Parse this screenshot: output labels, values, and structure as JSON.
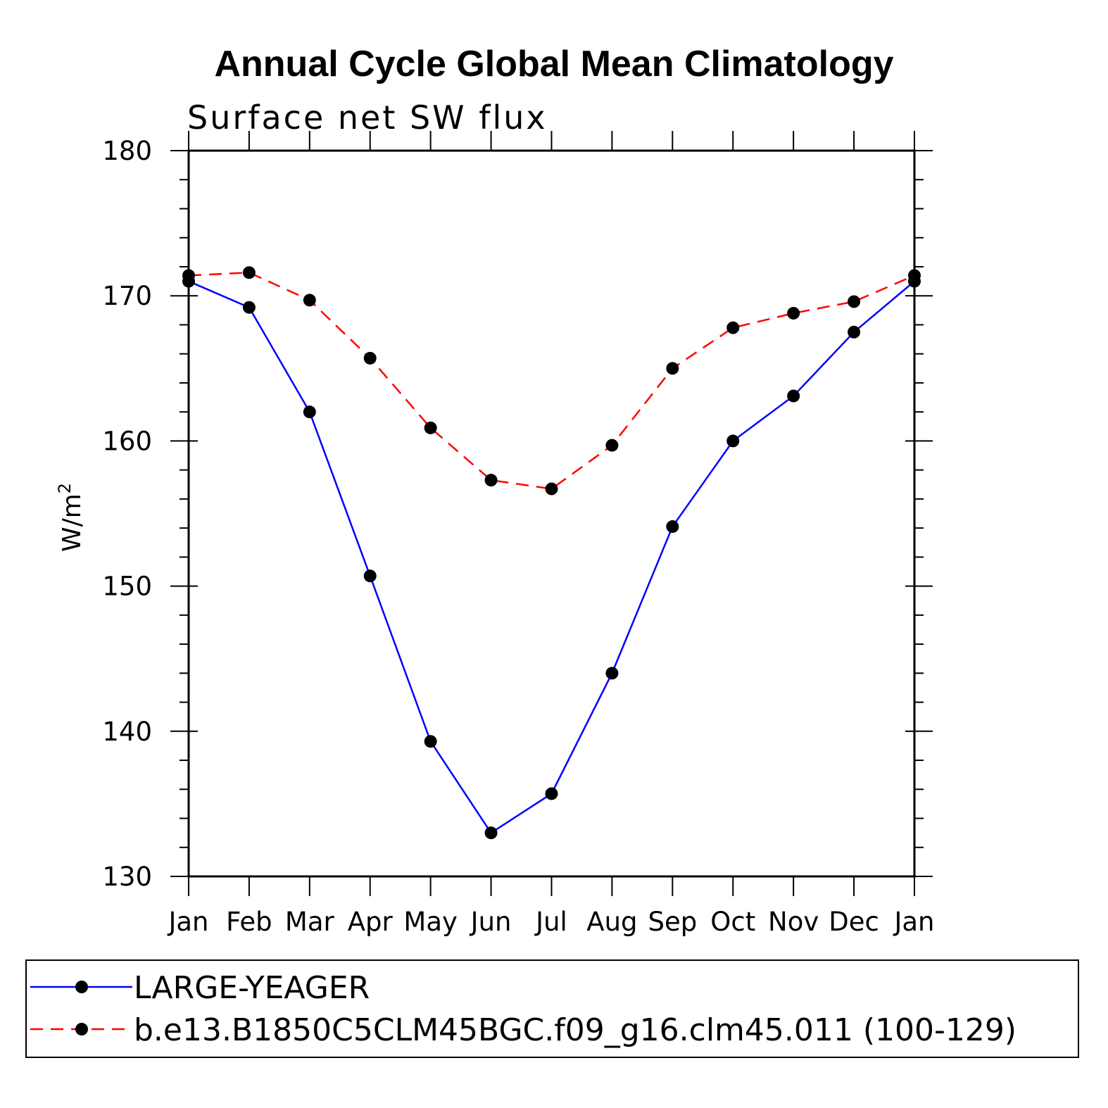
{
  "chart_data": {
    "type": "line",
    "title": "Annual Cycle Global Mean Climatology",
    "subtitle": "Surface net SW flux",
    "ylabel_base": "W/m",
    "ylabel_sup": "2",
    "xlabel": "",
    "categories": [
      "Jan",
      "Feb",
      "Mar",
      "Apr",
      "May",
      "Jun",
      "Jul",
      "Aug",
      "Sep",
      "Oct",
      "Nov",
      "Dec",
      "Jan"
    ],
    "ylim": [
      130,
      180
    ],
    "yticks": [
      130,
      140,
      150,
      160,
      170,
      180
    ],
    "y_minor_step": 2,
    "grid": false,
    "legend_position": "bottom",
    "series": [
      {
        "name": "LARGE-YEAGER",
        "color": "#0000ff",
        "dash": "solid",
        "values": [
          171.0,
          169.2,
          162.0,
          150.7,
          139.3,
          133.0,
          135.7,
          144.0,
          154.1,
          160.0,
          163.1,
          167.5,
          171.0
        ]
      },
      {
        "name": "b.e13.B1850C5CLM45BGC.f09_g16.clm45.011 (100-129)",
        "color": "#ff0000",
        "dash": "dashed",
        "values": [
          171.4,
          171.6,
          169.7,
          165.7,
          160.9,
          157.3,
          156.7,
          159.7,
          165.0,
          167.8,
          168.8,
          169.6,
          171.4
        ]
      }
    ]
  }
}
